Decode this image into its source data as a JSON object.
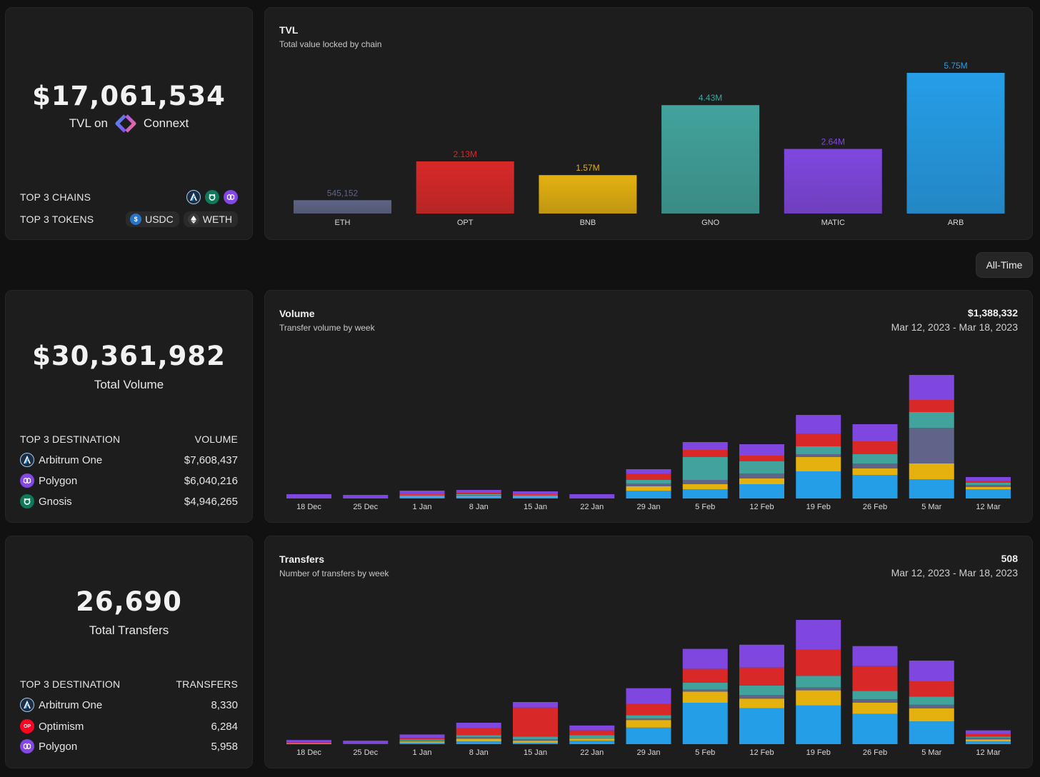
{
  "tvl_card": {
    "amount": "$17,061,534",
    "label_prefix": "TVL on",
    "brand": "Connext",
    "top_chains_label": "TOP 3 CHAINS",
    "top_chain_icons": [
      "arbitrum-icon",
      "gnosis-icon",
      "polygon-icon"
    ],
    "top_tokens_label": "TOP 3 TOKENS",
    "tokens": [
      {
        "name": "USDC",
        "icon": "usdc-icon"
      },
      {
        "name": "WETH",
        "icon": "ethereum-icon"
      }
    ]
  },
  "volume_card": {
    "amount": "$30,361,982",
    "label": "Total Volume",
    "col1": "TOP 3 DESTINATION",
    "col2": "VOLUME",
    "rows": [
      {
        "chain": "Arbitrum One",
        "value": "$7,608,437",
        "icon": "arbitrum-icon"
      },
      {
        "chain": "Polygon",
        "value": "$6,040,216",
        "icon": "polygon-icon"
      },
      {
        "chain": "Gnosis",
        "value": "$4,946,265",
        "icon": "gnosis-icon"
      }
    ]
  },
  "transfers_card": {
    "amount": "26,690",
    "label": "Total Transfers",
    "col1": "TOP 3 DESTINATION",
    "col2": "TRANSFERS",
    "rows": [
      {
        "chain": "Arbitrum One",
        "value": "8,330",
        "icon": "arbitrum-icon"
      },
      {
        "chain": "Optimism",
        "value": "6,284",
        "icon": "optimism-icon"
      },
      {
        "chain": "Polygon",
        "value": "5,958",
        "icon": "polygon-icon"
      }
    ]
  },
  "range_button": "All-Time",
  "colors": {
    "ETH": "#5f6488",
    "OPT": "#d92828",
    "BNB": "#e4b10f",
    "GNO": "#42a39c",
    "MATIC": "#8047e0",
    "ARB": "#259ee8"
  },
  "chart_data": [
    {
      "id": "tvl",
      "type": "bar",
      "title": "TVL",
      "subtitle": "Total value locked by chain",
      "categories": [
        "ETH",
        "OPT",
        "BNB",
        "GNO",
        "MATIC",
        "ARB"
      ],
      "values": [
        0.545152,
        2.13,
        1.57,
        4.43,
        2.64,
        5.75
      ],
      "labels": [
        "545,152",
        "2.13M",
        "1.57M",
        "4.43M",
        "2.64M",
        "5.75M"
      ],
      "unit": "M USD",
      "ylim": [
        0,
        5.75
      ],
      "grid": false
    },
    {
      "id": "volume",
      "type": "bar",
      "stacked": true,
      "title": "Volume",
      "subtitle": "Transfer volume by  week",
      "total_label": "$1,388,332",
      "range_label": "Mar 12, 2023 - Mar 18, 2023",
      "categories": [
        "18 Dec",
        "25 Dec",
        "1 Jan",
        "8 Jan",
        "15 Jan",
        "22 Jan",
        "29 Jan",
        "5 Feb",
        "12 Feb",
        "19 Feb",
        "26 Feb",
        "5 Mar",
        "12 Mar"
      ],
      "unit": "relative",
      "ylim": [
        0,
        175
      ],
      "grid": false,
      "series": [
        {
          "name": "ARB",
          "values": [
            0,
            0,
            2,
            2,
            2,
            0,
            11,
            13,
            20,
            38,
            33,
            27,
            13
          ]
        },
        {
          "name": "BNB",
          "values": [
            0,
            0,
            1,
            1,
            1,
            0,
            6,
            7,
            8,
            20,
            9,
            22,
            3
          ]
        },
        {
          "name": "ETH",
          "values": [
            0,
            0,
            1,
            1,
            1,
            0,
            4,
            6,
            7,
            4,
            7,
            50,
            3
          ]
        },
        {
          "name": "GNO",
          "values": [
            0,
            0,
            1,
            2,
            1,
            0,
            5,
            32,
            17,
            11,
            13,
            22,
            3
          ]
        },
        {
          "name": "OPT",
          "values": [
            0,
            0,
            1,
            2,
            1,
            0,
            9,
            10,
            8,
            18,
            18,
            17,
            3
          ]
        },
        {
          "name": "MATIC",
          "values": [
            6,
            5,
            5,
            4,
            4,
            6,
            6,
            11,
            16,
            26,
            24,
            35,
            5
          ]
        }
      ]
    },
    {
      "id": "transfers",
      "type": "bar",
      "stacked": true,
      "title": "Transfers",
      "subtitle": "Number of transfers by  week",
      "total_label": "508",
      "range_label": "Mar 12, 2023 - Mar 18, 2023",
      "categories": [
        "18 Dec",
        "25 Dec",
        "1 Jan",
        "8 Jan",
        "15 Jan",
        "22 Jan",
        "29 Jan",
        "5 Feb",
        "12 Feb",
        "19 Feb",
        "26 Feb",
        "5 Mar",
        "12 Mar"
      ],
      "unit": "relative",
      "ylim": [
        0,
        181
      ],
      "grid": false,
      "series": [
        {
          "name": "ARB",
          "values": [
            0,
            0,
            2,
            4,
            2,
            5,
            24,
            60,
            52,
            56,
            44,
            33,
            4
          ]
        },
        {
          "name": "BNB",
          "values": [
            1,
            0,
            2,
            4,
            3,
            3,
            11,
            16,
            14,
            22,
            16,
            19,
            3
          ]
        },
        {
          "name": "ETH",
          "values": [
            0,
            0,
            1,
            2,
            2,
            0,
            2,
            3,
            5,
            4,
            5,
            5,
            2
          ]
        },
        {
          "name": "GNO",
          "values": [
            0,
            0,
            2,
            3,
            4,
            5,
            5,
            10,
            14,
            17,
            12,
            12,
            2
          ]
        },
        {
          "name": "OPT",
          "values": [
            1,
            1,
            2,
            10,
            42,
            7,
            16,
            20,
            26,
            38,
            36,
            22,
            4
          ]
        },
        {
          "name": "MATIC",
          "values": [
            4,
            4,
            5,
            8,
            8,
            7,
            23,
            29,
            33,
            43,
            29,
            30,
            5
          ]
        }
      ]
    }
  ]
}
